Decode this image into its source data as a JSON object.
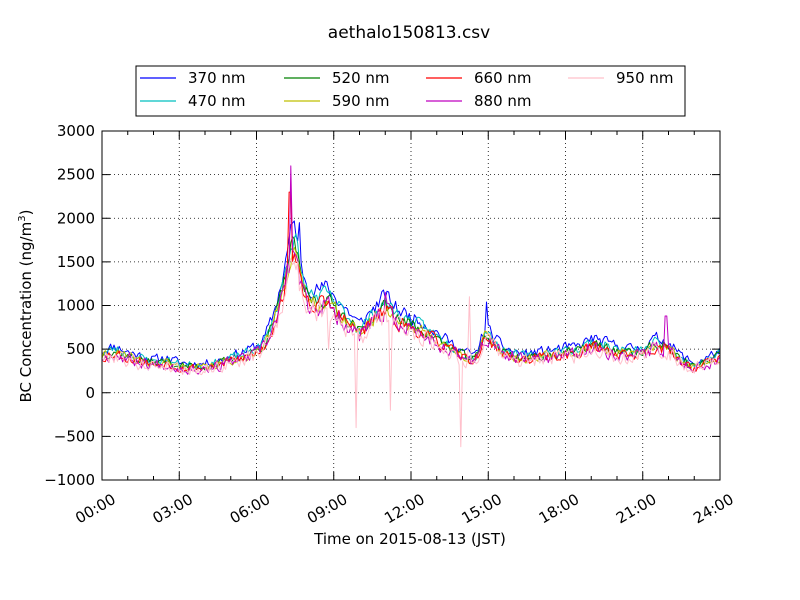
{
  "chart_data": {
    "type": "line",
    "title": "aethalo150813.csv",
    "xlabel": "Time on 2015-08-13 (JST)",
    "ylabel": "BC Concentration (ng/m",
    "ylabel_sup": "3",
    "ylabel_end": ")",
    "xlim": [
      0,
      24
    ],
    "ylim": [
      -1000,
      3000
    ],
    "grid": true,
    "legend_position": "top",
    "x_ticks": [
      0,
      3,
      6,
      9,
      12,
      15,
      18,
      21,
      24
    ],
    "x_tick_labels": [
      "00:00",
      "03:00",
      "06:00",
      "09:00",
      "12:00",
      "15:00",
      "18:00",
      "21:00",
      "24:00"
    ],
    "y_ticks": [
      -1000,
      -500,
      0,
      500,
      1000,
      1500,
      2000,
      2500,
      3000
    ],
    "y_tick_labels": [
      "−1000",
      "−500",
      "0",
      "500",
      "1000",
      "1500",
      "2000",
      "2500",
      "3000"
    ],
    "base_profile": {
      "x": [
        0,
        0.5,
        1,
        1.5,
        2,
        2.5,
        3,
        3.5,
        4,
        4.5,
        5,
        5.5,
        6,
        6.3,
        6.6,
        6.9,
        7.1,
        7.3,
        7.5,
        7.7,
        8,
        8.3,
        8.7,
        9,
        9.5,
        10,
        10.5,
        11,
        11.5,
        12,
        12.5,
        13,
        13.5,
        14,
        14.5,
        14.9,
        15.2,
        15.5,
        16,
        16.5,
        17,
        17.5,
        18,
        18.5,
        19,
        19.5,
        20,
        20.5,
        21,
        21.5,
        22,
        22.5,
        23,
        23.5,
        24
      ],
      "y": [
        430,
        480,
        420,
        380,
        340,
        360,
        310,
        300,
        300,
        330,
        380,
        420,
        480,
        560,
        750,
        1050,
        1300,
        1600,
        1750,
        1300,
        1100,
        1050,
        1080,
        1000,
        850,
        700,
        850,
        1000,
        850,
        780,
        720,
        620,
        520,
        430,
        380,
        680,
        580,
        480,
        420,
        400,
        420,
        440,
        460,
        470,
        560,
        520,
        480,
        450,
        460,
        560,
        520,
        380,
        300,
        360,
        430
      ]
    },
    "series": [
      {
        "name": "370 nm",
        "color": "#0000ff",
        "scale": 1.12,
        "seed": 11,
        "amp": 75
      },
      {
        "name": "470 nm",
        "color": "#00bfbf",
        "scale": 1.05,
        "seed": 23,
        "amp": 70
      },
      {
        "name": "520 nm",
        "color": "#008000",
        "scale": 1.0,
        "seed": 37,
        "amp": 70
      },
      {
        "name": "590 nm",
        "color": "#bfbf00",
        "scale": 0.97,
        "seed": 41,
        "amp": 70
      },
      {
        "name": "660 nm",
        "color": "#ff0000",
        "scale": 0.95,
        "seed": 53,
        "amp": 80
      },
      {
        "name": "880 nm",
        "color": "#bf00bf",
        "scale": 0.93,
        "seed": 67,
        "amp": 95
      },
      {
        "name": "950 nm",
        "color": "#ffc0cb",
        "scale": 0.9,
        "seed": 79,
        "amp": 110
      }
    ],
    "spikes": [
      {
        "series": "950 nm",
        "x": 9.85,
        "value": -400
      },
      {
        "series": "950 nm",
        "x": 11.2,
        "value": -200
      },
      {
        "series": "950 nm",
        "x": 13.95,
        "value": -620
      },
      {
        "series": "950 nm",
        "x": 14.25,
        "value": 1100
      },
      {
        "series": "950 nm",
        "x": 8.8,
        "value": 500
      },
      {
        "series": "880 nm",
        "x": 7.35,
        "value": 2600
      },
      {
        "series": "660 nm",
        "x": 7.3,
        "value": 2300
      },
      {
        "series": "370 nm",
        "x": 7.65,
        "value": 1950
      },
      {
        "series": "880 nm",
        "x": 11.0,
        "value": 1150
      },
      {
        "series": "370 nm",
        "x": 14.95,
        "value": 1040
      },
      {
        "series": "880 nm",
        "x": 21.9,
        "value": 880
      }
    ]
  }
}
